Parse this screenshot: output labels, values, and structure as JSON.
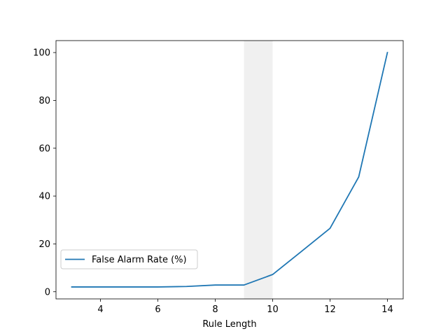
{
  "chart_data": {
    "type": "line",
    "title": "",
    "xlabel": "Rule Length",
    "ylabel": "",
    "xlim": [
      2.45,
      14.55
    ],
    "ylim": [
      -3,
      105
    ],
    "xticks": [
      4,
      6,
      8,
      10,
      12,
      14
    ],
    "yticks": [
      0,
      20,
      40,
      60,
      80,
      100
    ],
    "grid": false,
    "legend_position": "lower-left",
    "highlight_band": {
      "x_from": 9,
      "x_to": 10,
      "color": "#f0f0f0"
    },
    "series": [
      {
        "name": "False Alarm Rate (%)",
        "color": "#1f77b4",
        "x": [
          3,
          4,
          5,
          6,
          7,
          8,
          9,
          10,
          11,
          12,
          13,
          14
        ],
        "y": [
          2.0,
          2.0,
          2.0,
          2.0,
          2.2,
          2.8,
          2.8,
          7.2,
          16.8,
          26.5,
          48.0,
          100.0
        ]
      }
    ]
  }
}
